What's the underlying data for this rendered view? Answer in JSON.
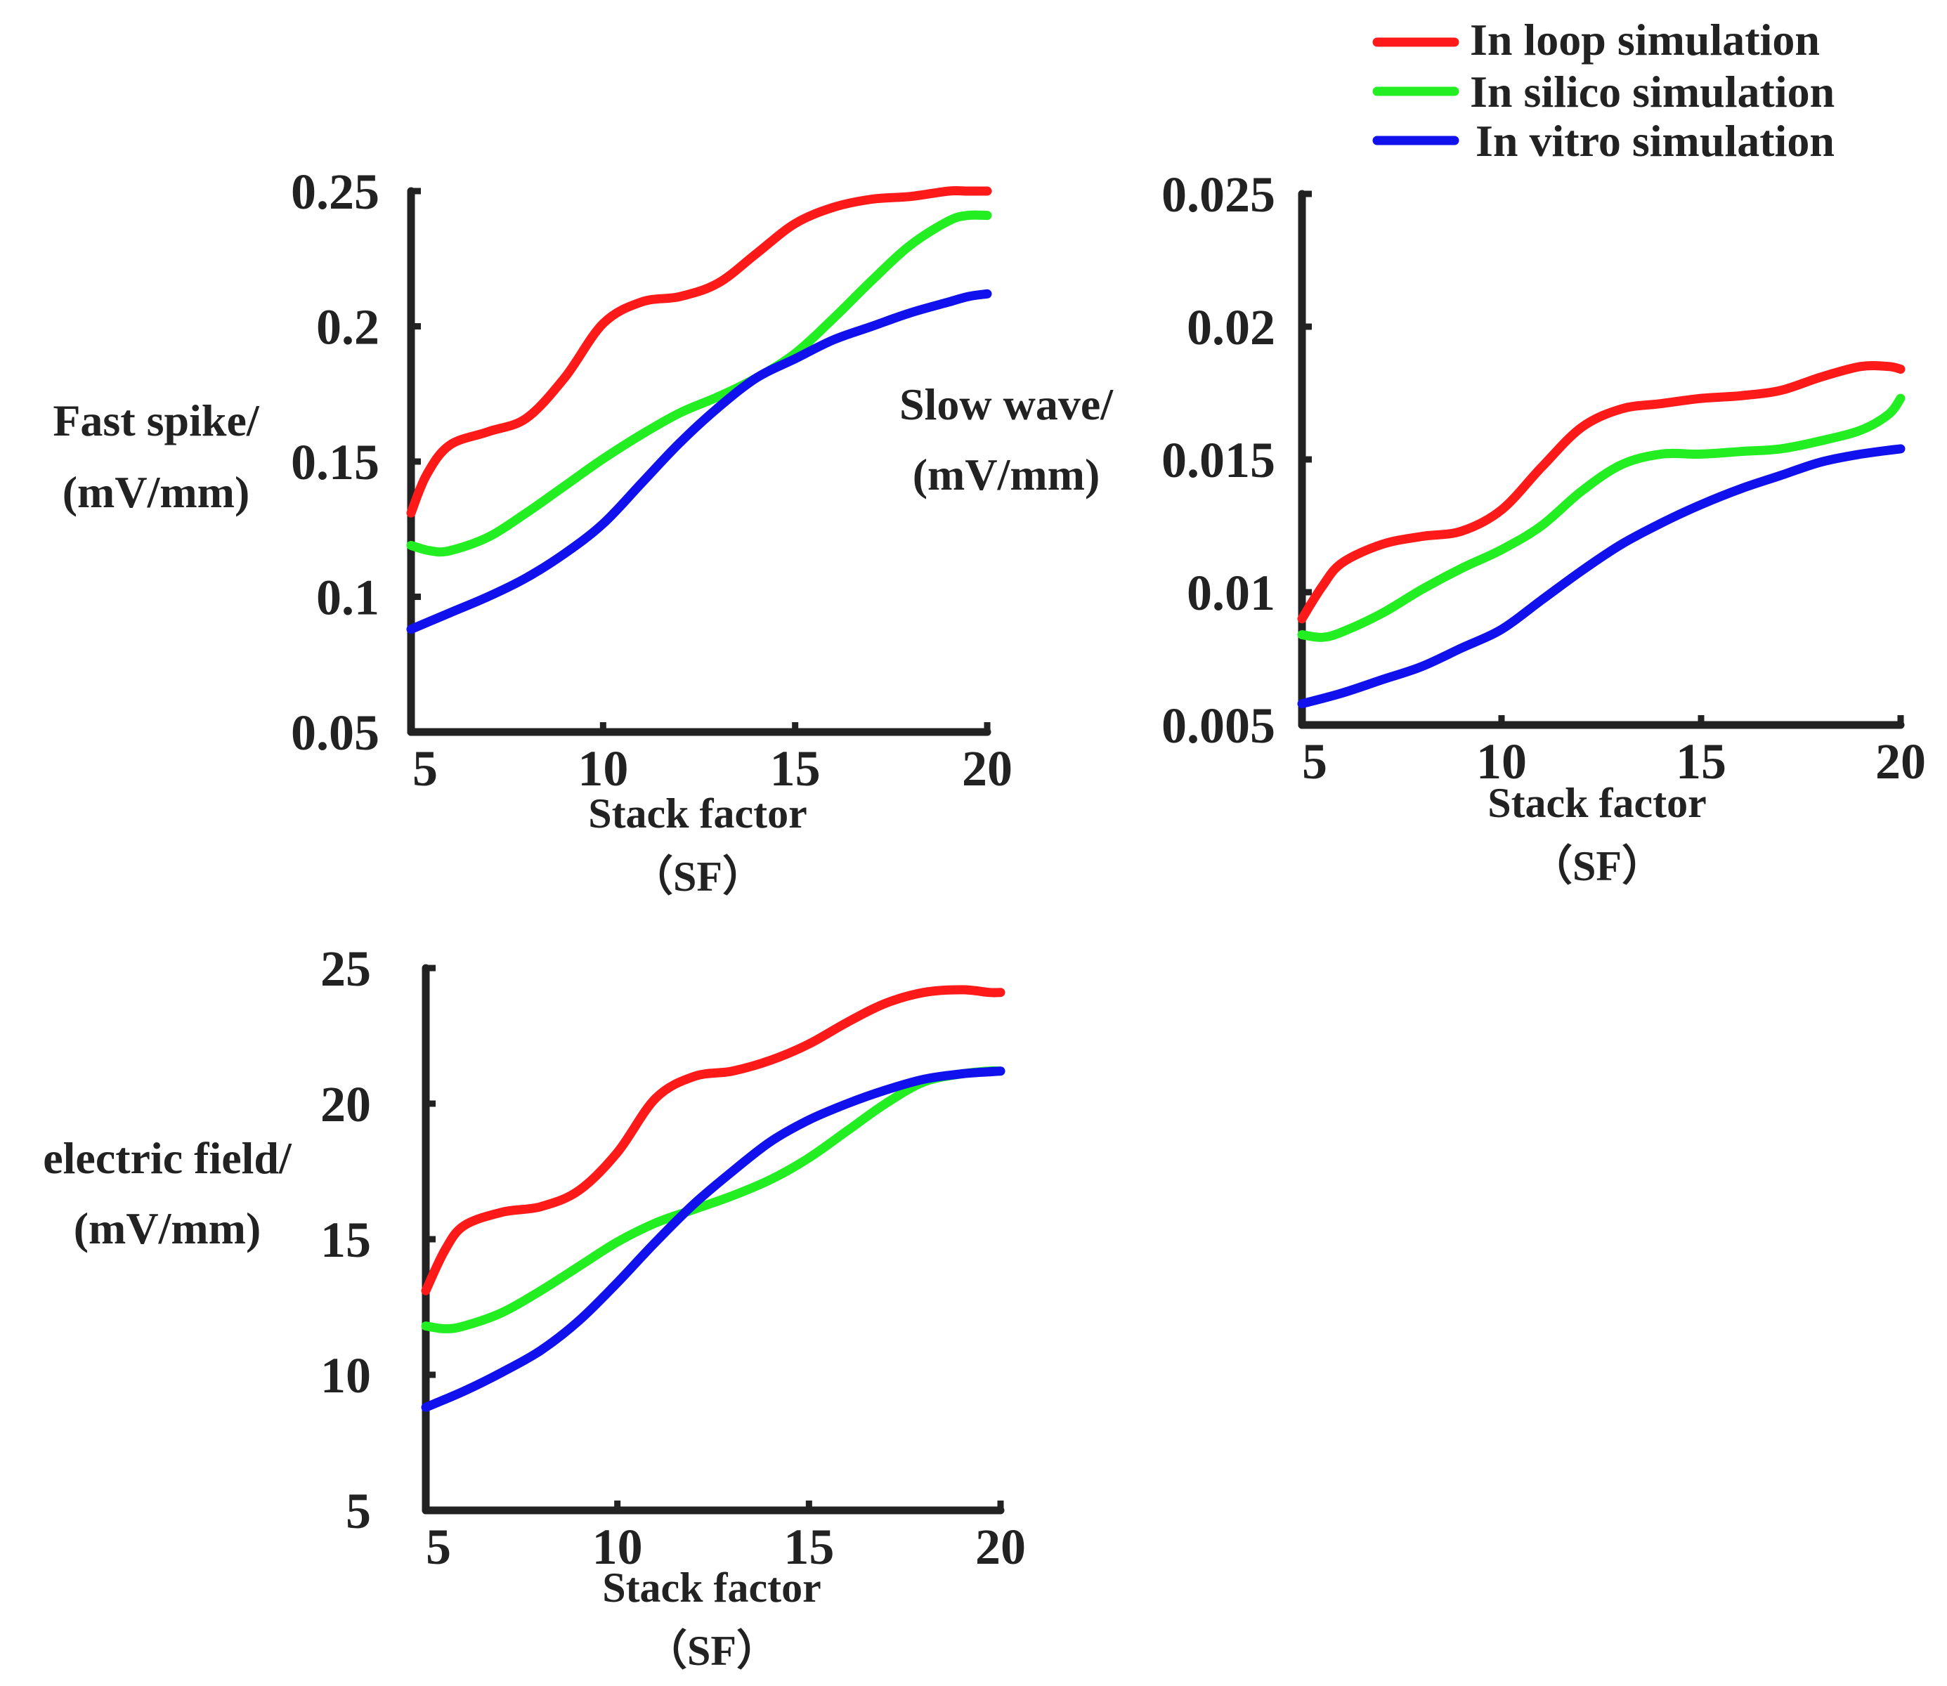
{
  "legend": {
    "placement": "top-right",
    "entries": [
      {
        "label": "In loop simulation",
        "color": "#ff1a1a"
      },
      {
        "label": "In silico simulation",
        "color": "#22ee22"
      },
      {
        "label": "In vitro simulation",
        "color": "#1111ee"
      }
    ]
  },
  "chart_data": [
    {
      "type": "line",
      "ylabel_line1": "Fast spike/",
      "ylabel_line2": "(mV/mm)",
      "xlabel_line1": "Stack factor",
      "xlabel_line2": "（SF）",
      "xlim": [
        5,
        20
      ],
      "ylim": [
        0.05,
        0.25
      ],
      "xticks": [
        5,
        10,
        15,
        20
      ],
      "xtick_labels": [
        "5",
        "10",
        "15",
        "20"
      ],
      "yticks": [
        0.05,
        0.1,
        0.15,
        0.2,
        0.25
      ],
      "ytick_labels": [
        "0.05",
        "0.1",
        "0.15",
        "0.2",
        "0.25"
      ],
      "series": [
        {
          "name": "In loop simulation",
          "color": "#ff1a1a",
          "x": [
            5,
            5.4,
            6,
            7,
            8,
            9,
            10,
            11,
            12,
            13,
            14,
            15,
            16,
            17,
            18,
            19,
            19.5,
            20
          ],
          "y": [
            0.131,
            0.145,
            0.156,
            0.161,
            0.166,
            0.181,
            0.201,
            0.209,
            0.211,
            0.216,
            0.227,
            0.238,
            0.244,
            0.247,
            0.248,
            0.25,
            0.25,
            0.25
          ]
        },
        {
          "name": "In silico simulation",
          "color": "#22ee22",
          "x": [
            5,
            5.5,
            6,
            7,
            8,
            9,
            10,
            11,
            12,
            13,
            14,
            15,
            16,
            17,
            18,
            19,
            19.5,
            20
          ],
          "y": [
            0.119,
            0.117,
            0.117,
            0.122,
            0.131,
            0.141,
            0.151,
            0.16,
            0.168,
            0.174,
            0.181,
            0.19,
            0.203,
            0.217,
            0.23,
            0.239,
            0.241,
            0.241
          ]
        },
        {
          "name": "In vitro simulation",
          "color": "#1111ee",
          "x": [
            5,
            6,
            7,
            8,
            9,
            10,
            11,
            12,
            13,
            14,
            15,
            16,
            17,
            18,
            19,
            19.5,
            20
          ],
          "y": [
            0.088,
            0.094,
            0.1,
            0.107,
            0.116,
            0.127,
            0.142,
            0.157,
            0.17,
            0.181,
            0.188,
            0.195,
            0.2,
            0.205,
            0.209,
            0.211,
            0.212
          ]
        }
      ]
    },
    {
      "type": "line",
      "ylabel_line1": "Slow wave/",
      "ylabel_line2": "(mV/mm)",
      "xlabel_line1": "Stack factor",
      "xlabel_line2": "（SF）",
      "xlim": [
        5,
        20
      ],
      "ylim": [
        0.005,
        0.025
      ],
      "xticks": [
        5,
        10,
        15,
        20
      ],
      "xtick_labels": [
        "5",
        "10",
        "15",
        "20"
      ],
      "yticks": [
        0.005,
        0.01,
        0.015,
        0.02,
        0.025
      ],
      "ytick_labels": [
        "0.005",
        "0.01",
        "0.015",
        "0.02",
        "0.025"
      ],
      "series": [
        {
          "name": "In loop simulation",
          "color": "#ff1a1a",
          "x": [
            5,
            5.5,
            6,
            7,
            8,
            9,
            10,
            11,
            12,
            13,
            14,
            15,
            16,
            17,
            18,
            19,
            19.7,
            20
          ],
          "y": [
            0.009,
            0.0102,
            0.0111,
            0.0118,
            0.0121,
            0.0123,
            0.0131,
            0.0147,
            0.0162,
            0.0169,
            0.0171,
            0.0173,
            0.0174,
            0.0176,
            0.0181,
            0.0185,
            0.0185,
            0.0184
          ]
        },
        {
          "name": "In silico simulation",
          "color": "#22ee22",
          "x": [
            5,
            5.5,
            6,
            7,
            8,
            9,
            10,
            11,
            12,
            13,
            14,
            15,
            16,
            17,
            18,
            19,
            19.7,
            20
          ],
          "y": [
            0.0084,
            0.0083,
            0.0085,
            0.0092,
            0.0101,
            0.0109,
            0.0116,
            0.0125,
            0.0138,
            0.0148,
            0.0152,
            0.0152,
            0.0153,
            0.0154,
            0.0157,
            0.0161,
            0.0167,
            0.0173
          ]
        },
        {
          "name": "In vitro simulation",
          "color": "#1111ee",
          "x": [
            5,
            6,
            7,
            8,
            9,
            10,
            11,
            12,
            13,
            14,
            15,
            16,
            17,
            18,
            19,
            20
          ],
          "y": [
            0.0058,
            0.0062,
            0.0067,
            0.0072,
            0.0079,
            0.0086,
            0.0097,
            0.0108,
            0.0118,
            0.0126,
            0.0133,
            0.0139,
            0.0144,
            0.0149,
            0.0152,
            0.0154
          ]
        }
      ]
    },
    {
      "type": "line",
      "ylabel_line1": "electric field/",
      "ylabel_line2": "(mV/mm)",
      "xlabel_line1": "Stack factor",
      "xlabel_line2": "（SF）",
      "xlim": [
        5,
        20
      ],
      "ylim": [
        5,
        25
      ],
      "xticks": [
        5,
        10,
        15,
        20
      ],
      "xtick_labels": [
        "5",
        "10",
        "15",
        "20"
      ],
      "yticks": [
        5,
        10,
        15,
        20,
        25
      ],
      "ytick_labels": [
        "5",
        "10",
        "15",
        "20",
        "25"
      ],
      "series": [
        {
          "name": "In loop simulation",
          "color": "#ff1a1a",
          "x": [
            5,
            5.5,
            6,
            7,
            8,
            9,
            10,
            11,
            12,
            13,
            14,
            15,
            16,
            17,
            18,
            19,
            19.7,
            20
          ],
          "y": [
            13.1,
            14.6,
            15.5,
            16.0,
            16.2,
            16.8,
            18.2,
            20.2,
            21.0,
            21.2,
            21.6,
            22.2,
            23.0,
            23.7,
            24.1,
            24.2,
            24.1,
            24.1
          ]
        },
        {
          "name": "In silico simulation",
          "color": "#22ee22",
          "x": [
            5,
            5.5,
            6,
            7,
            8,
            9,
            10,
            11,
            12,
            13,
            14,
            15,
            16,
            17,
            18,
            19,
            19.7,
            20
          ],
          "y": [
            11.8,
            11.7,
            11.8,
            12.3,
            13.1,
            14.0,
            14.9,
            15.6,
            16.1,
            16.6,
            17.2,
            18.0,
            19.0,
            20.0,
            20.8,
            21.1,
            21.2,
            21.2
          ]
        },
        {
          "name": "In vitro simulation",
          "color": "#1111ee",
          "x": [
            5,
            6,
            7,
            8,
            9,
            10,
            11,
            12,
            13,
            14,
            15,
            16,
            17,
            18,
            19,
            20
          ],
          "y": [
            8.8,
            9.4,
            10.1,
            10.9,
            12.0,
            13.4,
            14.9,
            16.3,
            17.5,
            18.6,
            19.4,
            20.0,
            20.5,
            20.9,
            21.1,
            21.2
          ]
        }
      ]
    }
  ]
}
